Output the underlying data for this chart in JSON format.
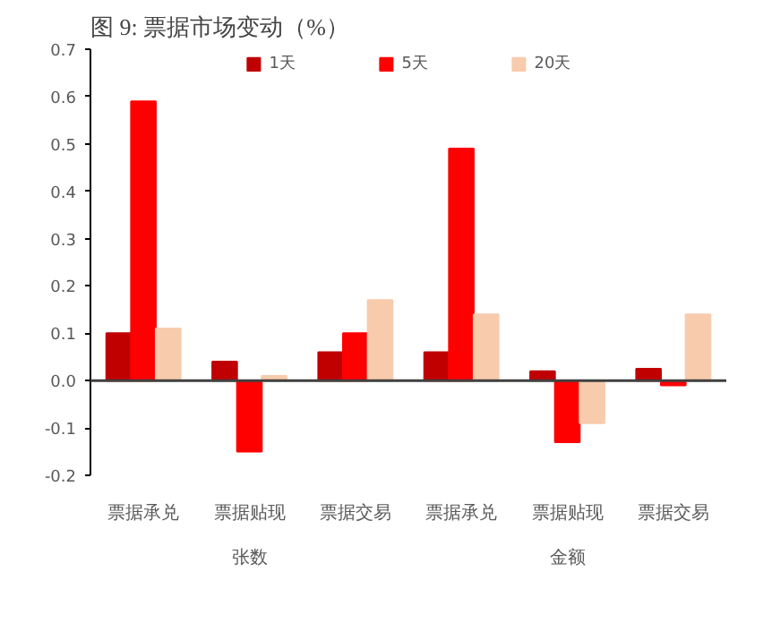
{
  "chart_data": {
    "type": "bar",
    "title": "图 9:     票据市场变动（%）",
    "categories": [
      "票据承兑",
      "票据贴现",
      "票据交易",
      "票据承兑",
      "票据贴现",
      "票据交易"
    ],
    "series": [
      {
        "name": "1天",
        "color": "#c00000",
        "values": [
          0.1,
          0.04,
          0.06,
          0.06,
          0.02,
          0.025
        ]
      },
      {
        "name": "5天",
        "color": "#ff0000",
        "values": [
          0.59,
          -0.15,
          0.1,
          0.49,
          -0.13,
          -0.01
        ]
      },
      {
        "name": "20天",
        "color": "#f8cbad",
        "values": [
          0.11,
          0.01,
          0.17,
          0.14,
          -0.09,
          0.14
        ]
      }
    ],
    "annotations": [
      "张数",
      "金额"
    ],
    "ylim": [
      -0.2,
      0.7
    ],
    "yticks": [
      {
        "value": -0.2,
        "label": "-0.2"
      },
      {
        "value": -0.1,
        "label": "-0.1"
      },
      {
        "value": 0,
        "label": "0.0"
      },
      0.1,
      0.2,
      0.3,
      0.4,
      0.5,
      0.6,
      0.7
    ],
    "legend": "top"
  }
}
